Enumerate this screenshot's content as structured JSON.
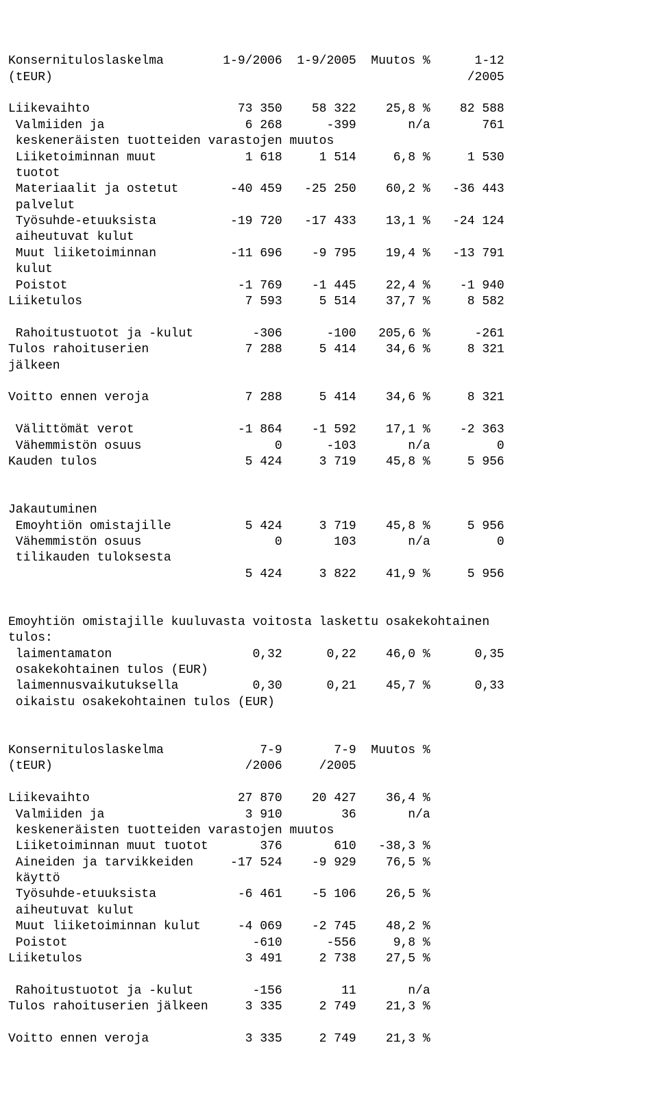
{
  "background_color": "#ffffff",
  "text_color": "#000000",
  "font_family": "Courier New, monospace",
  "font_size_pt": 14,
  "table1": {
    "title": "Konsernituloslaskelma",
    "unit": "(tEUR)",
    "col_headers": [
      "1-9/2006",
      "1-9/2005",
      "Muutos %",
      "1-12",
      "/2005"
    ],
    "rows": [
      {
        "label": "Liikevaihto",
        "c1": "73 350",
        "c2": "58 322",
        "c3": "25,8 %",
        "c4": "82 588"
      },
      {
        "label": " Valmiiden ja",
        "c1": "6 268",
        "c2": "-399",
        "c3": "n/a",
        "c4": "761"
      },
      {
        "label": " keskeneräisten tuotteiden varastojen muutos",
        "c1": "",
        "c2": "",
        "c3": "",
        "c4": ""
      },
      {
        "label": " Liiketoiminnan muut",
        "c1": "1 618",
        "c2": "1 514",
        "c3": "6,8 %",
        "c4": "1 530"
      },
      {
        "label": " tuotot",
        "c1": "",
        "c2": "",
        "c3": "",
        "c4": ""
      },
      {
        "label": " Materiaalit ja ostetut",
        "c1": "-40 459",
        "c2": "-25 250",
        "c3": "60,2 %",
        "c4": "-36 443"
      },
      {
        "label": " palvelut",
        "c1": "",
        "c2": "",
        "c3": "",
        "c4": ""
      },
      {
        "label": " Työsuhde-etuuksista",
        "c1": "-19 720",
        "c2": "-17 433",
        "c3": "13,1 %",
        "c4": "-24 124"
      },
      {
        "label": " aiheutuvat kulut",
        "c1": "",
        "c2": "",
        "c3": "",
        "c4": ""
      },
      {
        "label": " Muut liiketoiminnan",
        "c1": "-11 696",
        "c2": "-9 795",
        "c3": "19,4 %",
        "c4": "-13 791"
      },
      {
        "label": " kulut",
        "c1": "",
        "c2": "",
        "c3": "",
        "c4": ""
      },
      {
        "label": " Poistot",
        "c1": "-1 769",
        "c2": "-1 445",
        "c3": "22,4 %",
        "c4": "-1 940"
      },
      {
        "label": "Liiketulos",
        "c1": "7 593",
        "c2": "5 514",
        "c3": "37,7 %",
        "c4": "8 582"
      },
      {
        "label": "",
        "c1": "",
        "c2": "",
        "c3": "",
        "c4": ""
      },
      {
        "label": " Rahoitustuotot ja -kulut",
        "c1": "-306",
        "c2": "-100",
        "c3": "205,6 %",
        "c4": "-261"
      },
      {
        "label": "Tulos rahoituserien",
        "c1": "7 288",
        "c2": "5 414",
        "c3": "34,6 %",
        "c4": "8 321"
      },
      {
        "label": "jälkeen",
        "c1": "",
        "c2": "",
        "c3": "",
        "c4": ""
      },
      {
        "label": "",
        "c1": "",
        "c2": "",
        "c3": "",
        "c4": ""
      },
      {
        "label": "Voitto ennen veroja",
        "c1": "7 288",
        "c2": "5 414",
        "c3": "34,6 %",
        "c4": "8 321"
      },
      {
        "label": "",
        "c1": "",
        "c2": "",
        "c3": "",
        "c4": ""
      },
      {
        "label": " Välittömät verot",
        "c1": "-1 864",
        "c2": "-1 592",
        "c3": "17,1 %",
        "c4": "-2 363"
      },
      {
        "label": " Vähemmistön osuus",
        "c1": "0",
        "c2": "-103",
        "c3": "n/a",
        "c4": "0"
      },
      {
        "label": "Kauden tulos",
        "c1": "5 424",
        "c2": "3 719",
        "c3": "45,8 %",
        "c4": "5 956"
      },
      {
        "label": "",
        "c1": "",
        "c2": "",
        "c3": "",
        "c4": ""
      },
      {
        "label": "",
        "c1": "",
        "c2": "",
        "c3": "",
        "c4": ""
      },
      {
        "label": "Jakautuminen",
        "c1": "",
        "c2": "",
        "c3": "",
        "c4": ""
      },
      {
        "label": " Emoyhtiön omistajille",
        "c1": "5 424",
        "c2": "3 719",
        "c3": "45,8 %",
        "c4": "5 956"
      },
      {
        "label": " Vähemmistön osuus",
        "c1": "0",
        "c2": "103",
        "c3": "n/a",
        "c4": "0"
      },
      {
        "label": " tilikauden tuloksesta",
        "c1": "",
        "c2": "",
        "c3": "",
        "c4": ""
      },
      {
        "label": "",
        "c1": "5 424",
        "c2": "3 822",
        "c3": "41,9 %",
        "c4": "5 956"
      }
    ],
    "eps_intro": "Emoyhtiön omistajille kuuluvasta voitosta laskettu osakekohtainen",
    "eps_intro2": "tulos:",
    "eps_rows": [
      {
        "label": " laimentamaton",
        "c1": "0,32",
        "c2": "0,22",
        "c3": "46,0 %",
        "c4": "0,35"
      },
      {
        "label": " osakekohtainen tulos (EUR)",
        "c1": "",
        "c2": "",
        "c3": "",
        "c4": ""
      },
      {
        "label": " laimennusvaikutuksella",
        "c1": "0,30",
        "c2": "0,21",
        "c3": "45,7 %",
        "c4": "0,33"
      },
      {
        "label": " oikaistu osakekohtainen tulos (EUR)",
        "c1": "",
        "c2": "",
        "c3": "",
        "c4": ""
      }
    ]
  },
  "table2": {
    "title": "Konsernituloslaskelma",
    "unit": "(tEUR)",
    "col_headers": [
      "7-9",
      "/2006",
      "7-9",
      "/2005",
      "Muutos %"
    ],
    "rows": [
      {
        "label": "Liikevaihto",
        "c1": "27 870",
        "c2": "20 427",
        "c3": "36,4 %"
      },
      {
        "label": " Valmiiden ja",
        "c1": "3 910",
        "c2": "36",
        "c3": "n/a"
      },
      {
        "label": " keskeneräisten tuotteiden varastojen muutos",
        "c1": "",
        "c2": "",
        "c3": ""
      },
      {
        "label": " Liiketoiminnan muut tuotot",
        "c1": "376",
        "c2": "610",
        "c3": "-38,3 %"
      },
      {
        "label": " Aineiden ja tarvikkeiden",
        "c1": "-17 524",
        "c2": "-9 929",
        "c3": "76,5 %"
      },
      {
        "label": " käyttö",
        "c1": "",
        "c2": "",
        "c3": ""
      },
      {
        "label": " Työsuhde-etuuksista",
        "c1": "-6 461",
        "c2": "-5 106",
        "c3": "26,5 %"
      },
      {
        "label": " aiheutuvat kulut",
        "c1": "",
        "c2": "",
        "c3": ""
      },
      {
        "label": " Muut liiketoiminnan kulut",
        "c1": "-4 069",
        "c2": "-2 745",
        "c3": "48,2 %"
      },
      {
        "label": " Poistot",
        "c1": "-610",
        "c2": "-556",
        "c3": "9,8 %"
      },
      {
        "label": "Liiketulos",
        "c1": "3 491",
        "c2": "2 738",
        "c3": "27,5 %"
      },
      {
        "label": "",
        "c1": "",
        "c2": "",
        "c3": ""
      },
      {
        "label": " Rahoitustuotot ja -kulut",
        "c1": "-156",
        "c2": "11",
        "c3": "n/a"
      },
      {
        "label": "Tulos rahoituserien jälkeen",
        "c1": "3 335",
        "c2": "2 749",
        "c3": "21,3 %"
      },
      {
        "label": "",
        "c1": "",
        "c2": "",
        "c3": ""
      },
      {
        "label": "Voitto ennen veroja",
        "c1": "3 335",
        "c2": "2 749",
        "c3": "21,3 %"
      }
    ]
  },
  "col_widths": {
    "label_w": 27,
    "c1_w": 10,
    "c2_w": 10,
    "c3_w": 10,
    "c4_w": 10
  }
}
